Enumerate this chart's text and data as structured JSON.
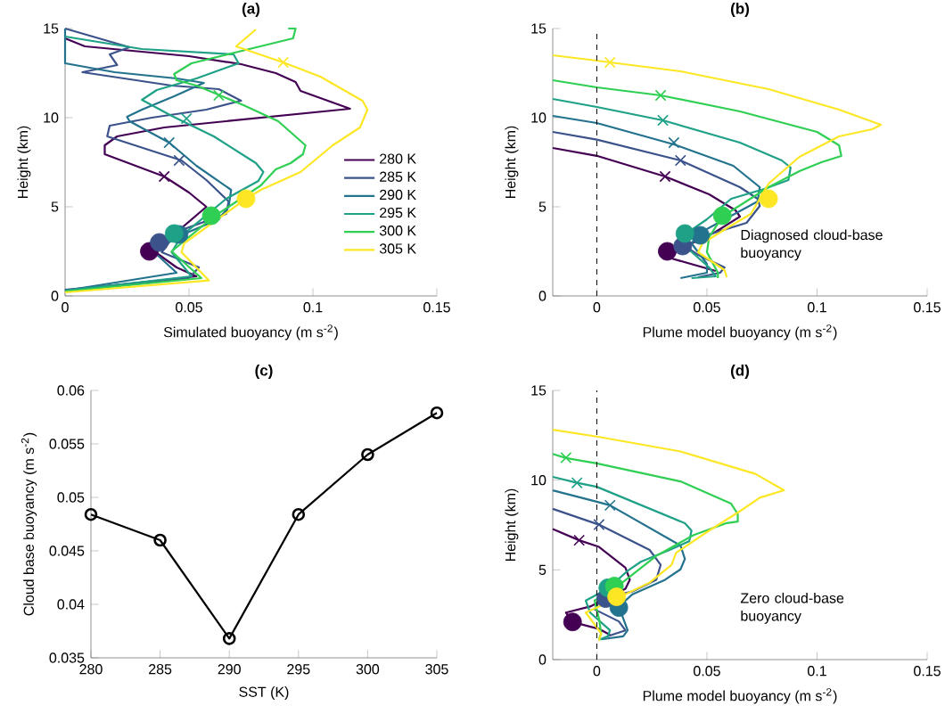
{
  "chart_data": [
    {
      "type": "line",
      "title": "(a)",
      "xlabel": "Simulated buoyancy (m s$^{-2}$)",
      "ylabel": "Height (km)",
      "xlim": [
        0,
        0.15
      ],
      "xticks": [
        0,
        0.05,
        0.1,
        0.15
      ],
      "ylim": [
        0,
        15
      ],
      "yticks": [
        0,
        5,
        10,
        15
      ],
      "legend": "right",
      "series": [
        {
          "name": "280 K",
          "color": "#440154",
          "x": [
            0,
            0.04,
            0.053,
            0.045,
            0.038,
            0.036,
            null,
            null,
            0.057,
            0.05,
            0.04,
            0.016,
            0.016,
            0.021,
            0.04,
            0.115,
            0.095,
            0.093,
            0.085,
            0.071,
            0.05,
            0.008,
            0
          ],
          "values": [
            0.3,
            0.9,
            1.1,
            1.6,
            2.3,
            2.5,
            null,
            null,
            5.0,
            5.8,
            6.7,
            7.95,
            8.45,
            8.95,
            9.45,
            10.5,
            11.5,
            12,
            12.5,
            13,
            13.45,
            14,
            14.45
          ]
        },
        {
          "name": "285 K",
          "color": "#3b528b",
          "x": [
            0,
            0.05,
            0.054,
            0.039,
            0.045,
            0.065,
            0.066,
            0.057,
            0.047,
            0.017,
            0.018,
            0.035,
            0.057,
            0.071,
            0.062,
            0.043,
            0.007,
            0.021,
            0.018,
            0.026,
            0
          ],
          "values": [
            0.35,
            1.0,
            1.6,
            2.45,
            3.6,
            4.6,
            5.3,
            6.5,
            7.6,
            8.95,
            9.55,
            10.0,
            10.45,
            10.95,
            11.6,
            11.8,
            12.55,
            12.95,
            13.55,
            13.95,
            15
          ]
        },
        {
          "name": "290 K",
          "color": "#23728e",
          "x": [
            0,
            0.045,
            0.036,
            0.045,
            0.062,
            0.066,
            0.067,
            0.053,
            0.042,
            0.026,
            0.025,
            0.031,
            0.044,
            0.056,
            0.045,
            0.02,
            0,
            0
          ],
          "values": [
            0.3,
            1.3,
            2.45,
            3.3,
            4.3,
            5.0,
            5.95,
            7.3,
            8.6,
            9.8,
            10.05,
            10.45,
            11.2,
            11.95,
            12.2,
            12.55,
            13.05,
            15
          ]
        },
        {
          "name": "295 K",
          "color": "#1fa187",
          "x": [
            0,
            0.051,
            0.043,
            0.047,
            null,
            0.065,
            0.078,
            0.08,
            0.077,
            0.06,
            0.043,
            0.031,
            0.037,
            0.053,
            0.07,
            0.068,
            0.031,
            0
          ],
          "values": [
            0.3,
            1.1,
            2.45,
            3.37,
            null,
            5.45,
            6.45,
            6.95,
            7.45,
            8.95,
            10.1,
            11.0,
            11.55,
            12.2,
            13.05,
            13.55,
            13.85,
            14.55
          ]
        },
        {
          "name": "300 K",
          "color": "#2fcf53",
          "x": [
            0,
            0.055,
            0.043,
            null,
            0.06,
            0.079,
            0.085,
            0.091,
            0.096,
            0.097,
            0.086,
            0.072,
            0.053,
            0.045,
            0.044,
            0.051,
            0.067,
            0.092,
            0.093,
            0.09
          ],
          "values": [
            0.25,
            1.0,
            2.5,
            null,
            4.45,
            6.2,
            7.1,
            7.45,
            7.95,
            8.45,
            9.8,
            10.7,
            11.8,
            12.1,
            12.45,
            13.05,
            13.6,
            14.45,
            15,
            15
          ]
        },
        {
          "name": "305 K",
          "color": "#fde725",
          "x": [
            0,
            0.058,
            0.047,
            0.048,
            0.073,
            0.079,
            0.095,
            0.108,
            0.119,
            0.122,
            0.12,
            0.103,
            0.088,
            0.07,
            0.069,
            0.077
          ],
          "values": [
            0.2,
            0.87,
            2.45,
            2.95,
            5.45,
            5.95,
            6.95,
            8.45,
            9.45,
            10.45,
            10.95,
            12.3,
            13.1,
            13.95,
            14.0,
            14.95
          ]
        },
        {
          "type": "scatter",
          "marker": "cross",
          "colors": [
            "#440154",
            "#3b528b",
            "#23728e",
            "#1fa187",
            "#2fcf53",
            "#fde725"
          ],
          "x": [
            0.04,
            0.046,
            0.042,
            0.049,
            0.062,
            0.088
          ],
          "values": [
            6.7,
            7.6,
            8.6,
            9.95,
            11.25,
            13.1
          ]
        },
        {
          "type": "scatter",
          "marker": "circle",
          "colors": [
            "#440154",
            "#3b528b",
            "#23728e",
            "#1fa187",
            "#2fcf53",
            "#fde725"
          ],
          "x": [
            0.034,
            0.038,
            0.046,
            0.044,
            0.059,
            0.073
          ],
          "values": [
            2.5,
            3.0,
            3.45,
            3.5,
            4.5,
            5.45
          ]
        }
      ]
    },
    {
      "type": "line",
      "title": "(b)",
      "xlabel": "Plume model buoyancy (m s$^{-2}$)",
      "ylabel": "Height (km)",
      "xlim": [
        -0.02,
        0.15
      ],
      "xticks": [
        0,
        0.05,
        0.1,
        0.15
      ],
      "ylim": [
        0,
        15
      ],
      "yticks": [
        0,
        5,
        10,
        15
      ],
      "ref_lines": [
        {
          "axis": "x",
          "value": 0,
          "color": "#000000",
          "line_style": "dashed"
        }
      ],
      "annotations": [
        "Diagnosed cloud-base buoyancy"
      ],
      "series": [
        {
          "color": "#440154",
          "x": [
            0.054,
            0.034,
            0.036,
            0.044,
            0.054,
            0.065,
            0.063,
            0.051,
            0.031,
            0,
            -0.02
          ],
          "values": [
            1.4,
            2.1,
            2.5,
            3.0,
            3.6,
            4.45,
            4.8,
            5.7,
            6.7,
            7.86,
            8.3
          ]
        },
        {
          "color": "#3b528b",
          "x": [
            0.046,
            0.056,
            0.058,
            0.046,
            0.04,
            0.051,
            0.068,
            0.074,
            0.073,
            0.065,
            0.038,
            0,
            -0.02
          ],
          "values": [
            1.05,
            1.3,
            1.6,
            2.3,
            2.8,
            3.45,
            4.1,
            5.05,
            5.45,
            6.1,
            7.6,
            8.77,
            9.2
          ]
        },
        {
          "color": "#23728e",
          "x": [
            0.038,
            0.05,
            0.05,
            0.043,
            0.047,
            null,
            0.073,
            0.074,
            0.062,
            0.035,
            0,
            -0.02
          ],
          "values": [
            1.0,
            1.3,
            1.8,
            2.95,
            3.55,
            null,
            5.3,
            6.1,
            7.3,
            8.5,
            9.7,
            10.1
          ]
        },
        {
          "color": "#1fa187",
          "x": [
            0.043,
            0.054,
            0.051,
            0.04,
            0.04,
            0.05,
            0.061,
            0.076,
            0.087,
            0.088,
            0.084,
            0.065,
            0.03,
            0,
            -0.02
          ],
          "values": [
            1.0,
            1.1,
            1.6,
            2.8,
            3.45,
            4.3,
            5.45,
            6.0,
            6.5,
            7.2,
            7.6,
            8.6,
            9.85,
            10.6,
            11.05
          ]
        },
        {
          "color": "#2fcf53",
          "x": [
            0.055,
            0.055,
            0.05,
            0.051,
            0.057,
            0.078,
            0.092,
            0.102,
            0.111,
            0.11,
            0.1,
            0.065,
            0.029,
            0,
            -0.02
          ],
          "values": [
            1.0,
            1.3,
            2.45,
            3.3,
            4.45,
            6.1,
            7.0,
            7.5,
            7.85,
            8.45,
            9.2,
            10.35,
            11.25,
            11.7,
            12.1
          ]
        },
        {
          "color": "#fde725",
          "x": [
            0.059,
            0.058,
            0.046,
            0.048,
            0.059,
            0.07,
            0.078,
            0.092,
            0.11,
            0.125,
            0.129,
            0.11,
            0.078,
            0.038,
            0.006,
            0,
            -0.02
          ],
          "values": [
            1.05,
            1.45,
            2.45,
            2.95,
            3.8,
            4.6,
            6.3,
            7.8,
            8.95,
            9.35,
            9.6,
            10.45,
            11.6,
            12.6,
            13.1,
            13.2,
            13.5
          ]
        },
        {
          "type": "scatter",
          "marker": "cross",
          "colors": [
            "#440154",
            "#3b528b",
            "#23728e",
            "#1fa187",
            "#2fcf53",
            "#fde725"
          ],
          "x": [
            0.031,
            0.038,
            0.035,
            0.03,
            0.029,
            0.006
          ],
          "values": [
            6.7,
            7.6,
            8.6,
            9.85,
            11.25,
            13.1
          ]
        },
        {
          "type": "scatter",
          "marker": "circle",
          "colors": [
            "#440154",
            "#3b528b",
            "#23728e",
            "#1fa187",
            "#2fcf53",
            "#fde725"
          ],
          "x": [
            0.032,
            0.039,
            0.047,
            0.04,
            0.057,
            0.078
          ],
          "values": [
            2.5,
            2.8,
            3.4,
            3.5,
            4.5,
            5.45
          ]
        }
      ]
    },
    {
      "type": "line",
      "title": "(c)",
      "xlabel": "SST (K)",
      "ylabel": "Cloud base buoyancy (m s$^{-2}$)",
      "xlim": [
        280,
        305
      ],
      "xticks": [
        280,
        285,
        290,
        295,
        300,
        305
      ],
      "ylim": [
        0.035,
        0.06
      ],
      "yticks": [
        0.035,
        0.04,
        0.045,
        0.05,
        0.055,
        0.06
      ],
      "marker": "circle",
      "color": "#000000",
      "x": [
        280,
        285,
        290,
        295,
        300,
        305
      ],
      "values": [
        0.0484,
        0.046,
        0.0368,
        0.0484,
        0.054,
        0.0579
      ]
    },
    {
      "type": "line",
      "title": "(d)",
      "xlabel": "Plume model buoyancy (m s$^{-2}$)",
      "ylabel": "Height (km)",
      "xlim": [
        -0.02,
        0.15
      ],
      "xticks": [
        0,
        0.05,
        0.1,
        0.15
      ],
      "ylim": [
        0,
        15
      ],
      "yticks": [
        0,
        5,
        10,
        15
      ],
      "ref_lines": [
        {
          "axis": "x",
          "value": 0,
          "color": "#000000",
          "line_style": "dashed"
        }
      ],
      "annotations": [
        "Zero cloud-base buoyancy"
      ],
      "series": [
        {
          "color": "#440154",
          "x": [
            0.006,
            0.001,
            -0.011,
            -0.014,
            -0.003,
            0.013,
            0.015,
            0.013,
            0.001,
            -0.008,
            -0.02
          ],
          "values": [
            1.38,
            1.71,
            2.09,
            2.62,
            2.96,
            3.95,
            4.45,
            5.12,
            6.28,
            6.65,
            7.28
          ]
        },
        {
          "color": "#3b528b",
          "x": [
            0.005,
            0.013,
            0.01,
            -0.001,
            0.002,
            0.016,
            0.027,
            0.029,
            0.024,
            0.001,
            -0.02
          ],
          "values": [
            1.3,
            1.63,
            2.13,
            2.8,
            3.37,
            3.79,
            4.45,
            5.28,
            6.11,
            7.52,
            8.4
          ]
        },
        {
          "color": "#23728e",
          "x": [
            0.002,
            0.012,
            0.014,
            0.01,
            0.016,
            0.031,
            0.038,
            0.04,
            0.038,
            0.006,
            0,
            -0.02
          ],
          "values": [
            1.13,
            1.3,
            1.63,
            2.96,
            3.62,
            4.45,
            5.03,
            5.61,
            6.36,
            8.6,
            8.8,
            9.43
          ]
        },
        {
          "color": "#1fa187",
          "x": [
            0.001,
            0.005,
            0.006,
            -0.003,
            -0.005,
            0.005,
            0.014,
            0.02,
            0.033,
            0.042,
            0.043,
            0.04,
            0,
            -0.009,
            -0.02
          ],
          "values": [
            1.1,
            1.3,
            1.63,
            2.62,
            3.29,
            3.95,
            4.95,
            5.45,
            6.11,
            6.6,
            7.19,
            7.6,
            9.63,
            9.85,
            10.18
          ]
        },
        {
          "color": "#2fcf53",
          "x": [
            0.001,
            0.002,
            0.001,
            -0.001,
            0.009,
            0.027,
            0.044,
            0.059,
            0.064,
            0.064,
            0.061,
            0.038,
            0,
            -0.014,
            -0.02
          ],
          "values": [
            1.13,
            1.46,
            2.29,
            3.29,
            4.04,
            5.78,
            6.94,
            7.61,
            7.69,
            8.11,
            8.69,
            9.93,
            10.93,
            11.23,
            11.46
          ]
        },
        {
          "color": "#fde725",
          "x": [
            0.001,
            0.002,
            -0.005,
            0.01,
            0.024,
            0.034,
            0.036,
            0.051,
            0.065,
            0.074,
            0.085,
            0.072,
            0.038,
            0,
            -0.02
          ],
          "values": [
            1.05,
            1.46,
            2.62,
            3.46,
            4.29,
            5.28,
            5.95,
            7.19,
            8.27,
            9.02,
            9.44,
            10.35,
            11.6,
            12.43,
            12.81
          ]
        },
        {
          "type": "scatter",
          "marker": "cross",
          "colors": [
            "#440154",
            "#3b528b",
            "#23728e",
            "#1fa187",
            "#2fcf53"
          ],
          "x": [
            -0.008,
            0.001,
            0.006,
            -0.009,
            -0.014
          ],
          "values": [
            6.65,
            7.52,
            8.6,
            9.85,
            11.25
          ]
        },
        {
          "type": "scatter",
          "marker": "circle",
          "colors": [
            "#440154",
            "#3b528b",
            "#23728e",
            "#1fa187",
            "#2fcf53",
            "#fde725"
          ],
          "x": [
            -0.011,
            0.004,
            0.01,
            0.005,
            0.008,
            0.009
          ],
          "values": [
            2.1,
            3.4,
            2.9,
            4.0,
            4.1,
            3.5
          ]
        }
      ]
    }
  ]
}
